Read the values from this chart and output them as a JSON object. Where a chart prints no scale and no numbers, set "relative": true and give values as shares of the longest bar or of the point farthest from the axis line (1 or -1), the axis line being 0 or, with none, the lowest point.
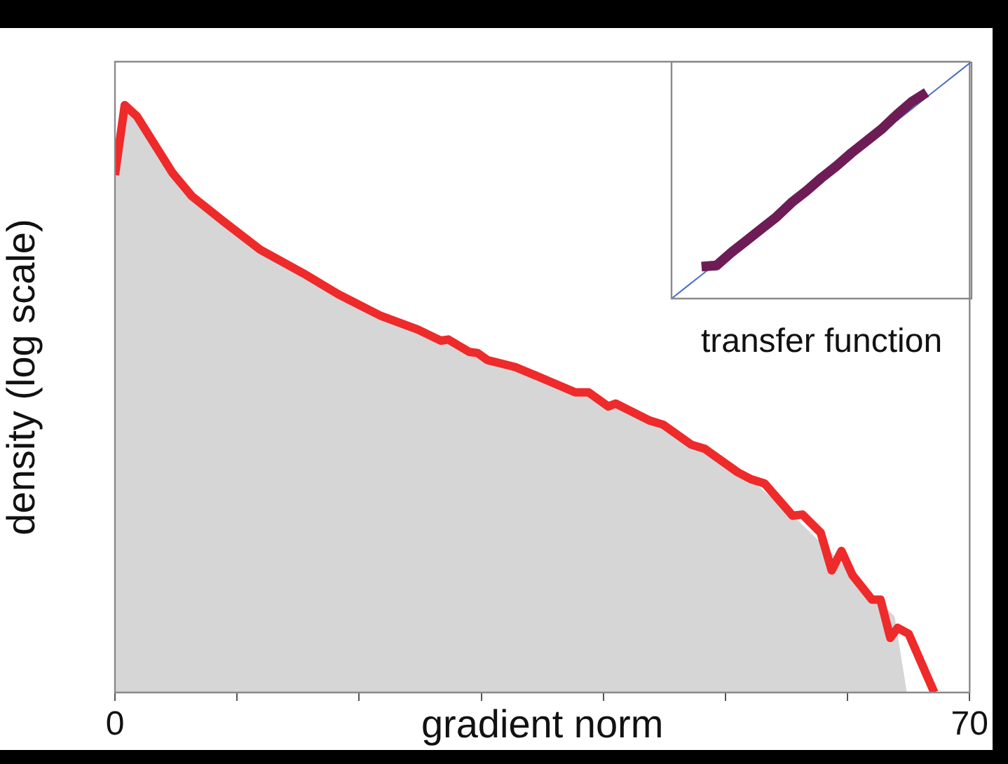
{
  "chart_data": [
    {
      "type": "line",
      "xlabel": "gradient norm",
      "ylabel": "density (log scale)",
      "relative": true,
      "marker": "none",
      "tick_labels": "x",
      "xlim": [
        0,
        70
      ],
      "xticks": [
        0,
        {
          "value": 10,
          "label": null
        },
        {
          "value": 20,
          "label": null
        },
        {
          "value": 30,
          "label": null
        },
        {
          "value": 40,
          "label": null
        },
        {
          "value": 50,
          "label": null
        },
        {
          "value": 60,
          "label": null
        },
        70
      ],
      "series": [
        {
          "type": "area",
          "color": "#d6d6d6",
          "x": [
            0,
            0.8,
            1.8,
            4.7,
            6.3,
            8.9,
            11.9,
            15.4,
            18.3,
            21.7,
            24.8,
            27.3,
            30.5,
            35,
            38.8,
            41,
            44.9,
            48.3,
            52.1,
            55.5,
            58,
            60.4,
            62,
            63.8,
            64.8
          ],
          "values": [
            0.87,
            0.99,
            0.975,
            0.88,
            0.84,
            0.8,
            0.75,
            0.71,
            0.675,
            0.64,
            0.615,
            0.598,
            0.566,
            0.535,
            0.508,
            0.49,
            0.455,
            0.413,
            0.36,
            0.3,
            0.25,
            0.2,
            0.165,
            0.129,
            0
          ]
        },
        {
          "type": "line",
          "color": "#ee2a2a",
          "x": [
            0,
            0.8,
            1.8,
            4.7,
            6.3,
            8.9,
            11.9,
            15.4,
            18.3,
            21.7,
            24.8,
            26.7,
            27.3,
            29,
            29.7,
            30.5,
            32.8,
            35,
            37.7,
            38.8,
            40.4,
            41,
            43.8,
            44.9,
            47.2,
            48.3,
            51,
            52.1,
            53.2,
            55.5,
            56.3,
            57.8,
            58.7,
            59.5,
            60.4,
            62,
            62.7,
            63.5,
            64.1,
            65,
            67.1
          ],
          "values": [
            0.881,
            1,
            0.981,
            0.885,
            0.845,
            0.802,
            0.754,
            0.714,
            0.678,
            0.642,
            0.618,
            0.599,
            0.601,
            0.58,
            0.578,
            0.566,
            0.554,
            0.535,
            0.511,
            0.511,
            0.487,
            0.492,
            0.463,
            0.456,
            0.422,
            0.415,
            0.375,
            0.363,
            0.356,
            0.301,
            0.303,
            0.272,
            0.208,
            0.241,
            0.2,
            0.158,
            0.158,
            0.093,
            0.11,
            0.1,
            0
          ]
        }
      ]
    },
    {
      "type": "line",
      "xlabel": "transfer function",
      "relative": true,
      "marker": "none",
      "tick_labels": false,
      "categories": [
        null,
        null,
        null,
        null,
        null,
        null,
        null,
        null,
        null,
        null,
        null,
        null,
        null,
        null,
        null,
        null,
        null,
        null,
        null,
        null,
        null
      ],
      "series": [
        {
          "color": "#4a6fc0",
          "values": [
            0,
            0.05,
            0.1,
            0.15,
            null,
            null,
            null,
            null,
            null,
            null,
            null,
            null,
            null,
            null,
            null,
            0.75,
            0.8,
            0.85,
            0.9,
            0.95,
            1
          ]
        },
        {
          "color": "#6e1c56",
          "values": [
            null,
            null,
            0.135,
            0.14,
            0.195,
            0.245,
            0.295,
            0.345,
            0.405,
            0.455,
            0.51,
            0.56,
            0.615,
            0.665,
            0.715,
            0.775,
            0.83,
            0.87,
            null,
            null,
            null
          ]
        }
      ]
    }
  ]
}
